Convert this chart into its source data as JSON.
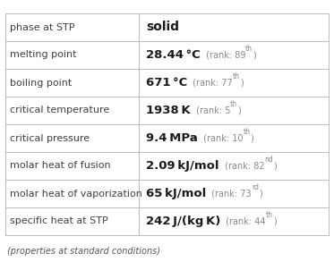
{
  "rows": [
    {
      "label": "phase at STP",
      "value": "solid",
      "unit": "",
      "rank_text": "",
      "rank_sup": "",
      "is_plain": true
    },
    {
      "label": "melting point",
      "value": "28.44",
      "unit": "°C",
      "rank_text": "89",
      "rank_sup": "th",
      "is_plain": false
    },
    {
      "label": "boiling point",
      "value": "671",
      "unit": "°C",
      "rank_text": "77",
      "rank_sup": "th",
      "is_plain": false
    },
    {
      "label": "critical temperature",
      "value": "1938",
      "unit": "K",
      "rank_text": "5",
      "rank_sup": "th",
      "is_plain": false
    },
    {
      "label": "critical pressure",
      "value": "9.4",
      "unit": "MPa",
      "rank_text": "10",
      "rank_sup": "th",
      "is_plain": false
    },
    {
      "label": "molar heat of fusion",
      "value": "2.09",
      "unit": "kJ/mol",
      "rank_text": "82",
      "rank_sup": "nd",
      "is_plain": false
    },
    {
      "label": "molar heat of vaporization",
      "value": "65",
      "unit": "kJ/mol",
      "rank_text": "73",
      "rank_sup": "rd",
      "is_plain": false
    },
    {
      "label": "specific heat at STP",
      "value": "242",
      "unit": "J/(kg K)",
      "rank_text": "44",
      "rank_sup": "th",
      "is_plain": false
    }
  ],
  "footer": "(properties at standard conditions)",
  "bg_color": "#ffffff",
  "line_color": "#bbbbbb",
  "label_color": "#404040",
  "value_color": "#1a1a1a",
  "rank_color": "#888888",
  "footer_color": "#555555",
  "label_fontsize": 8.0,
  "value_fontsize": 9.5,
  "rank_fontsize": 7.0,
  "rank_sup_fontsize": 5.5,
  "footer_fontsize": 7.0
}
